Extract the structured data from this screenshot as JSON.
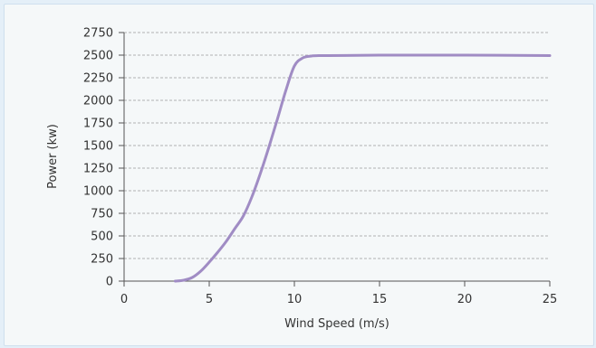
{
  "chart_data": {
    "type": "line",
    "title": "",
    "xlabel": "Wind Speed (m/s)",
    "ylabel": "Power (kw)",
    "xlim": [
      0,
      25
    ],
    "ylim": [
      0,
      2750
    ],
    "x_ticks": [
      0,
      5,
      10,
      15,
      20,
      25
    ],
    "y_ticks": [
      0,
      250,
      500,
      750,
      1000,
      1250,
      1500,
      1750,
      2000,
      2250,
      2500,
      2750
    ],
    "grid": "horizontal-dashed",
    "legend": "none",
    "series": [
      {
        "color": "#a08cc4",
        "x": [
          3,
          3.5,
          4,
          4.5,
          5,
          5.5,
          6,
          6.5,
          7,
          7.5,
          8,
          8.5,
          9,
          9.5,
          10,
          10.5,
          11,
          11.5,
          12,
          15,
          20,
          25
        ],
        "y": [
          0,
          10,
          40,
          110,
          210,
          320,
          440,
          580,
          720,
          930,
          1190,
          1480,
          1790,
          2110,
          2380,
          2470,
          2490,
          2495,
          2495,
          2500,
          2500,
          2495
        ]
      }
    ]
  }
}
